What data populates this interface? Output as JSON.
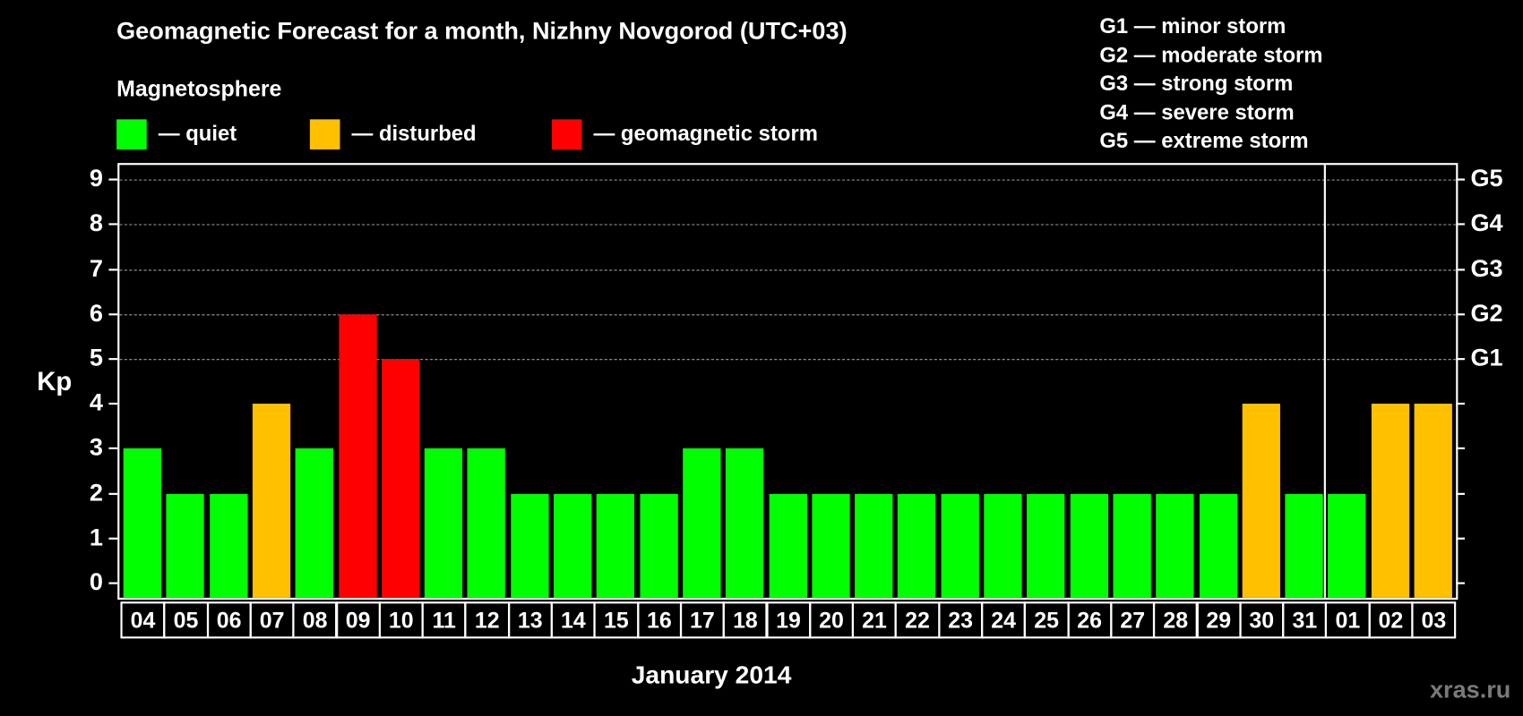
{
  "title": "Geomagnetic Forecast for a month, Nizhny Novgorod (UTC+03)",
  "subtitle": "Magnetosphere",
  "legend": [
    {
      "label": "— quiet",
      "color": "#00ff00"
    },
    {
      "label": "— disturbed",
      "color": "#ffc000"
    },
    {
      "label": "— geomagnetic storm",
      "color": "#ff0000"
    }
  ],
  "g_legend": [
    "G1 — minor storm",
    "G2 — moderate storm",
    "G3 — strong storm",
    "G4 — severe storm",
    "G5 — extreme storm"
  ],
  "watermark": "xras.ru",
  "chart_data": {
    "type": "bar",
    "title": "Geomagnetic Forecast for a month, Nizhny Novgorod (UTC+03)",
    "xlabel": "January 2014",
    "ylabel": "Kp",
    "ylim": [
      0,
      9
    ],
    "yticks": [
      "0",
      "1",
      "2",
      "3",
      "4",
      "5",
      "6",
      "7",
      "8",
      "9"
    ],
    "right_axis_labels": [
      {
        "value": 5,
        "label": "G1"
      },
      {
        "value": 6,
        "label": "G2"
      },
      {
        "value": 7,
        "label": "G3"
      },
      {
        "value": 8,
        "label": "G4"
      },
      {
        "value": 9,
        "label": "G5"
      }
    ],
    "grid": "dashed horizontal at 5-9",
    "month_separator_after": "31",
    "categories": [
      "04",
      "05",
      "06",
      "07",
      "08",
      "09",
      "10",
      "11",
      "12",
      "13",
      "14",
      "15",
      "16",
      "17",
      "18",
      "19",
      "20",
      "21",
      "22",
      "23",
      "24",
      "25",
      "26",
      "27",
      "28",
      "29",
      "30",
      "31",
      "01",
      "02",
      "03"
    ],
    "values": [
      3,
      2,
      2,
      4,
      3,
      6,
      5,
      3,
      3,
      2,
      2,
      2,
      2,
      3,
      3,
      2,
      2,
      2,
      2,
      2,
      2,
      2,
      2,
      2,
      2,
      2,
      4,
      2,
      2,
      4,
      4
    ],
    "status": [
      "quiet",
      "quiet",
      "quiet",
      "disturbed",
      "quiet",
      "storm",
      "storm",
      "quiet",
      "quiet",
      "quiet",
      "quiet",
      "quiet",
      "quiet",
      "quiet",
      "quiet",
      "quiet",
      "quiet",
      "quiet",
      "quiet",
      "quiet",
      "quiet",
      "quiet",
      "quiet",
      "quiet",
      "quiet",
      "quiet",
      "disturbed",
      "quiet",
      "quiet",
      "disturbed",
      "disturbed"
    ],
    "colors": {
      "quiet": "#00ff00",
      "disturbed": "#ffc000",
      "storm": "#ff0000"
    }
  }
}
